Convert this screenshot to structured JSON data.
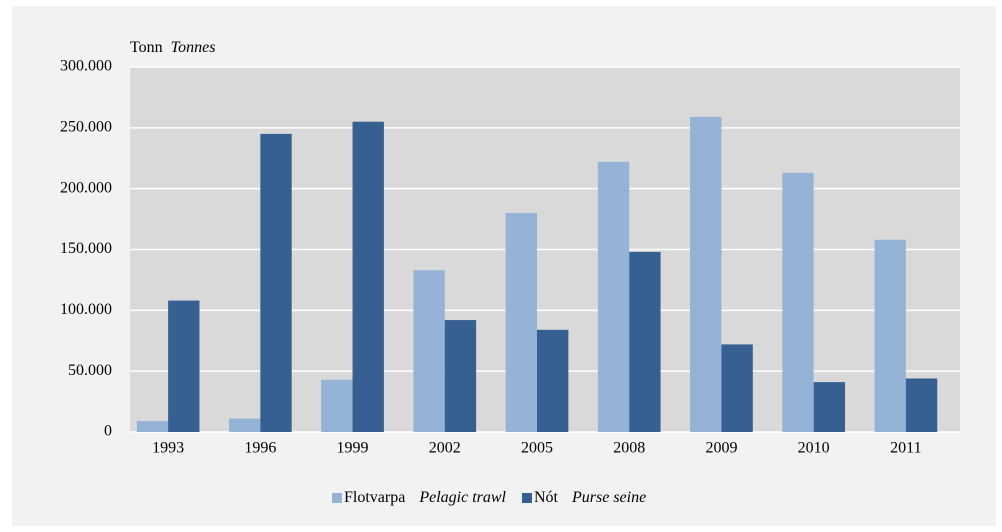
{
  "chart_data": {
    "type": "bar",
    "y_label": "Tonn",
    "y_label_en": "Tonnes",
    "categories": [
      "1993",
      "1996",
      "1999",
      "2002",
      "2005",
      "2008",
      "2009",
      "2010",
      "2011"
    ],
    "series": [
      {
        "name": "Flotvarpa",
        "name_en": "Pelagic trawl",
        "color": "#95b3d7",
        "values": [
          9000,
          11000,
          43000,
          133000,
          180000,
          222000,
          259000,
          213000,
          158000
        ]
      },
      {
        "name": "Nót",
        "name_en": "Purse seine",
        "color": "#366092",
        "values": [
          108000,
          245000,
          255000,
          92000,
          84000,
          148000,
          72000,
          41000,
          44000
        ]
      }
    ],
    "ylim": [
      0,
      300000
    ],
    "yticks": [
      0,
      {
        "value": 50000,
        "label": "50.000"
      },
      {
        "value": 100000,
        "label": "100.000"
      },
      {
        "value": 150000,
        "label": "150.000"
      },
      {
        "value": 200000,
        "label": "200.000"
      },
      {
        "value": 250000,
        "label": "250.000"
      },
      {
        "value": 300000,
        "label": "300.000"
      }
    ],
    "grid": true,
    "legend": "bottom"
  }
}
